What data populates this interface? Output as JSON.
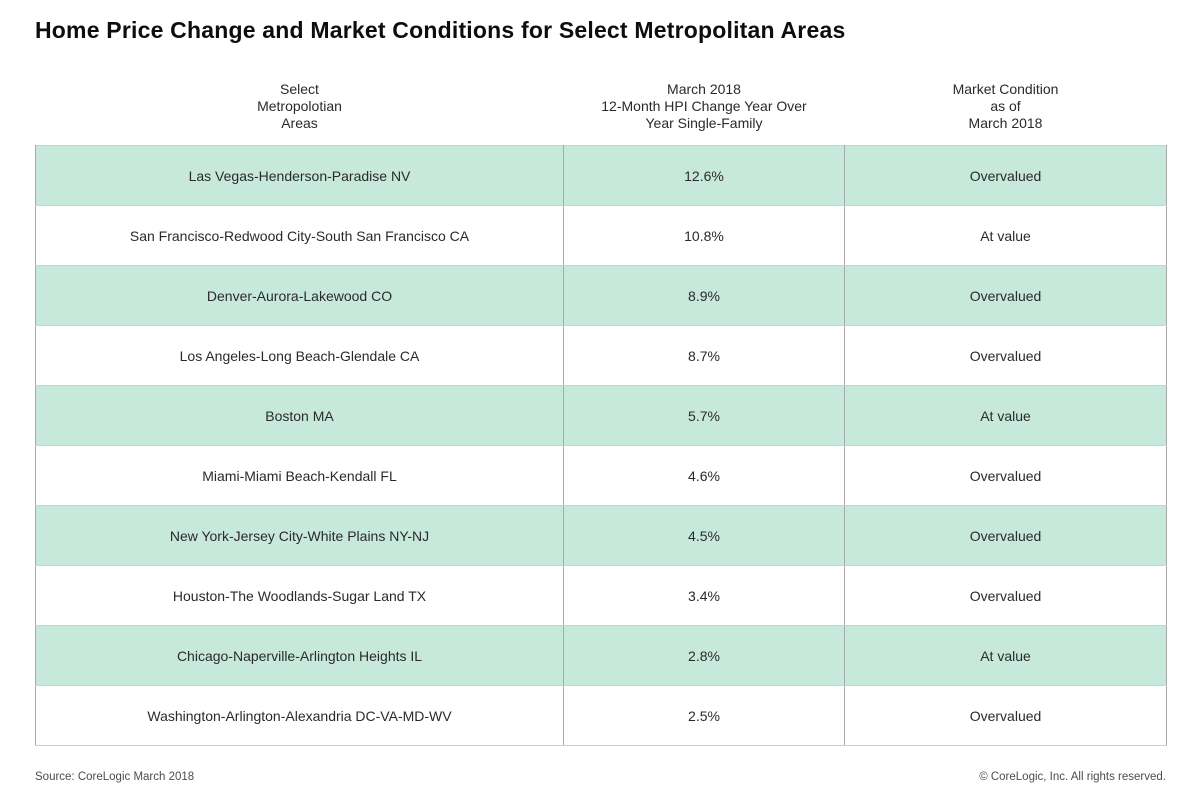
{
  "title": "Home Price Change and Market Conditions for Select Metropolitan Areas",
  "table": {
    "columns": [
      {
        "label": "Select\nMetropolotian\nAreas"
      },
      {
        "label": "March 2018\n12-Month HPI Change Year Over\nYear Single-Family"
      },
      {
        "label": "Market Condition\nas of\nMarch 2018"
      }
    ],
    "rows": [
      {
        "area": "Las Vegas-Henderson-Paradise NV",
        "hpi_change": "12.6%",
        "condition": "Overvalued"
      },
      {
        "area": "San Francisco-Redwood City-South San Francisco CA",
        "hpi_change": "10.8%",
        "condition": "At value"
      },
      {
        "area": "Denver-Aurora-Lakewood CO",
        "hpi_change": "8.9%",
        "condition": "Overvalued"
      },
      {
        "area": "Los Angeles-Long Beach-Glendale CA",
        "hpi_change": "8.7%",
        "condition": "Overvalued"
      },
      {
        "area": "Boston MA",
        "hpi_change": "5.7%",
        "condition": "At value"
      },
      {
        "area": "Miami-Miami Beach-Kendall FL",
        "hpi_change": "4.6%",
        "condition": "Overvalued"
      },
      {
        "area": "New York-Jersey City-White Plains NY-NJ",
        "hpi_change": "4.5%",
        "condition": "Overvalued"
      },
      {
        "area": "Houston-The Woodlands-Sugar Land TX",
        "hpi_change": "3.4%",
        "condition": "Overvalued"
      },
      {
        "area": "Chicago-Naperville-Arlington Heights IL",
        "hpi_change": "2.8%",
        "condition": "At value"
      },
      {
        "area": "Washington-Arlington-Alexandria DC-VA-MD-WV",
        "hpi_change": "2.5%",
        "condition": "Overvalued"
      }
    ]
  },
  "footer": {
    "source": "Source: CoreLogic March 2018",
    "copyright": "© CoreLogic, Inc. All rights reserved."
  },
  "colors": {
    "row_highlight": "#c6e9dc",
    "text": "#2b2a2b",
    "grid_vertical": "#a8a8a8",
    "grid_horizontal": "#cfcfcf"
  },
  "chart_data": {
    "type": "table",
    "title": "Home Price Change and Market Conditions for Select Metropolitan Areas",
    "columns": [
      "Select Metropolotian Areas",
      "March 2018 12-Month HPI Change Year Over Year Single-Family",
      "Market Condition as of March 2018"
    ],
    "categories": [
      "Las Vegas-Henderson-Paradise NV",
      "San Francisco-Redwood City-South San Francisco CA",
      "Denver-Aurora-Lakewood CO",
      "Los Angeles-Long Beach-Glendale CA",
      "Boston MA",
      "Miami-Miami Beach-Kendall FL",
      "New York-Jersey City-White Plains NY-NJ",
      "Houston-The Woodlands-Sugar Land TX",
      "Chicago-Naperville-Arlington Heights IL",
      "Washington-Arlington-Alexandria DC-VA-MD-WV"
    ],
    "hpi_change_pct": [
      12.6,
      10.8,
      8.9,
      8.7,
      5.7,
      4.6,
      4.5,
      3.4,
      2.8,
      2.5
    ],
    "market_condition": [
      "Overvalued",
      "At value",
      "Overvalued",
      "Overvalued",
      "At value",
      "Overvalued",
      "Overvalued",
      "Overvalued",
      "At value",
      "Overvalued"
    ],
    "source": "CoreLogic March 2018"
  }
}
